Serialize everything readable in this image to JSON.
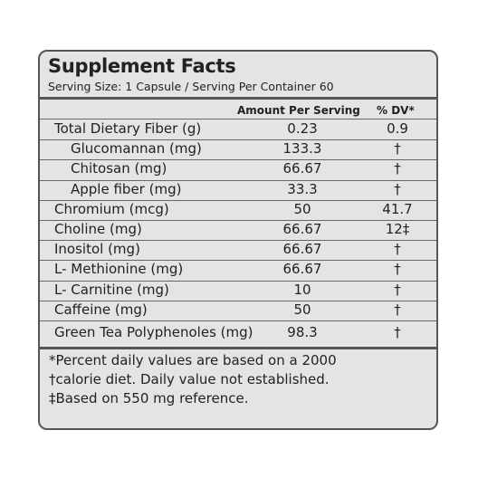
{
  "header": {
    "title": "Supplement Facts",
    "serving": "Serving Size: 1 Capsule / Serving Per Container 60"
  },
  "table": {
    "columns": [
      "Amount Per Serving",
      "% DV*"
    ],
    "rows": [
      {
        "name": "Total Dietary Fiber (g)",
        "amount": "0.23",
        "dv": "0.9"
      },
      {
        "name": "Glucomannan (mg)",
        "amount": "133.3",
        "dv": "†",
        "indent": true
      },
      {
        "name": "Chitosan (mg)",
        "amount": "66.67",
        "dv": "†",
        "indent": true
      },
      {
        "name": "Apple fiber (mg)",
        "amount": "33.3",
        "dv": "†",
        "indent": true
      },
      {
        "name": "Chromium (mcg)",
        "amount": "50",
        "dv": "41.7"
      },
      {
        "name": "Choline (mg)",
        "amount": "66.67",
        "dv": "12‡"
      },
      {
        "name": "Inositol (mg)",
        "amount": "66.67",
        "dv": "†"
      },
      {
        "name": "L- Methionine (mg)",
        "amount": "66.67",
        "dv": "†"
      },
      {
        "name": "L- Carnitine (mg)",
        "amount": "10",
        "dv": "†"
      },
      {
        "name": "Caffeine (mg)",
        "amount": "50",
        "dv": "†"
      },
      {
        "name": "Green Tea Polyphenoles (mg)",
        "amount": "98.3",
        "dv": "†"
      }
    ]
  },
  "footnotes": [
    "*Percent daily values are based on a 2000",
    "†calorie diet. Daily value not established.",
    "‡Based on 550 mg reference."
  ]
}
